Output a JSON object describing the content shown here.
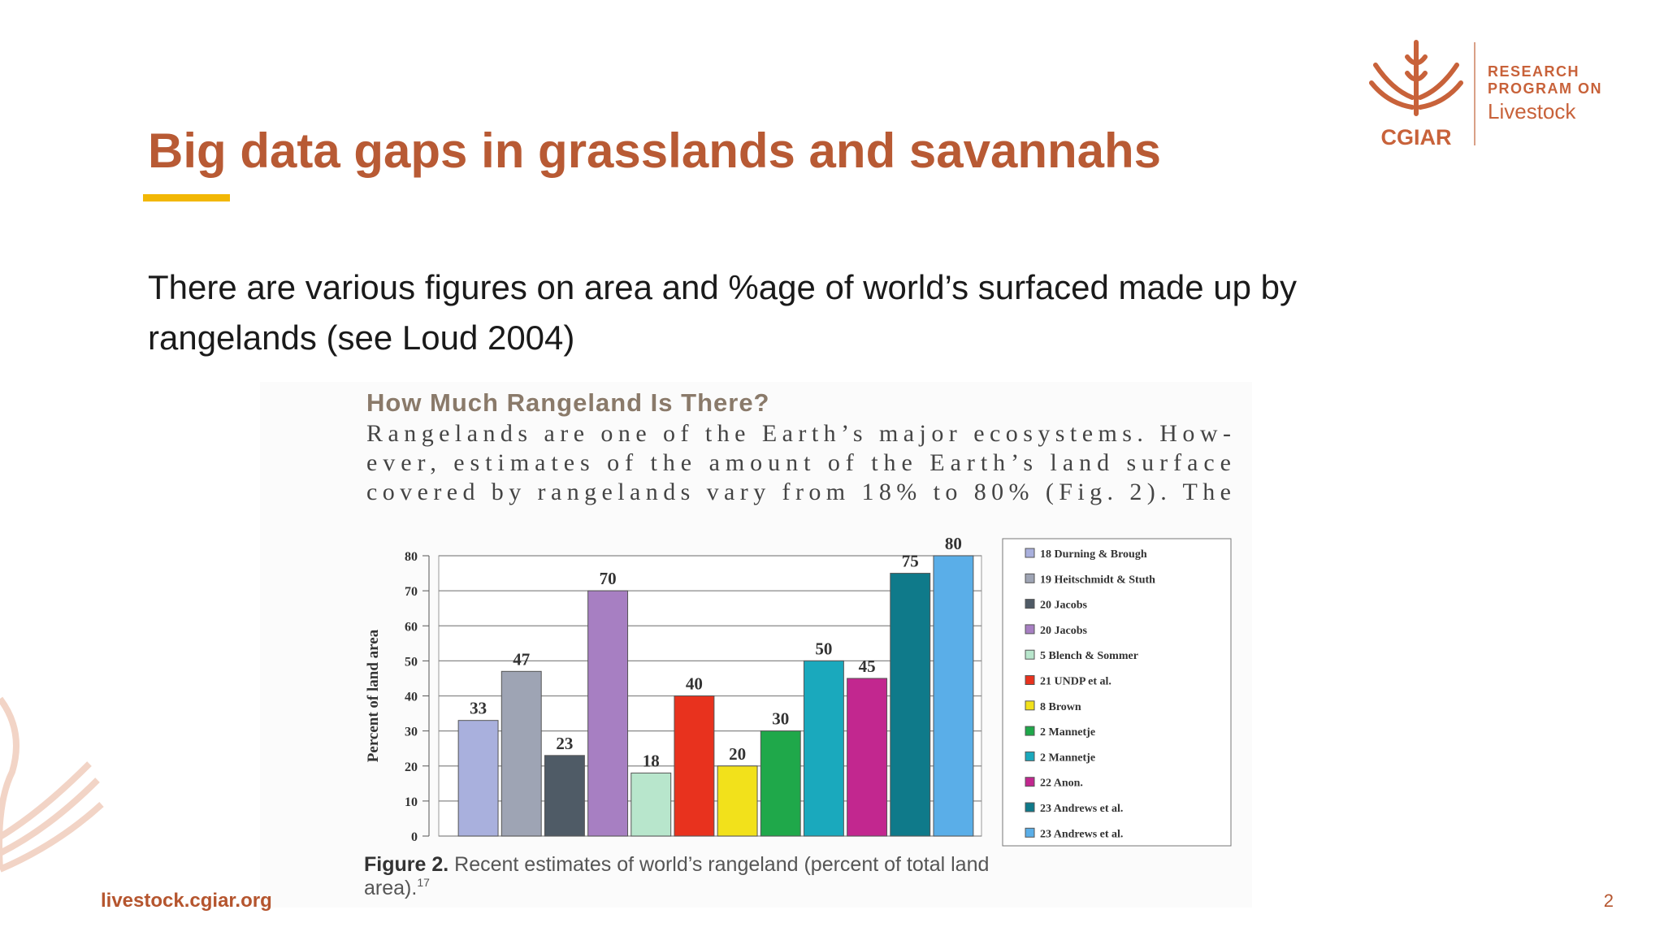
{
  "slide_title": "Big data gaps in grasslands and savannahs",
  "body_lines": [
    "There are various figures on area and %age of world’s surfaced made up by",
    "rangelands (see Loud  2004)"
  ],
  "logo": {
    "line1": "RESEARCH",
    "line2": "PROGRAM ON",
    "line3": "Livestock",
    "brand": "CGIAR"
  },
  "figure": {
    "heading": "How Much Rangeland Is There?",
    "lines": [
      "Rangelands are one of the Earth’s major ecosystems. How-",
      "ever, estimates of the amount of the Earth’s land surface",
      "covered by rangelands vary from 18% to 80% (Fig. 2). The"
    ],
    "caption_label": "Figure 2.",
    "caption_lines": [
      "Recent estimates of world’s rangeland (percent of total land",
      "area)."
    ],
    "caption_ref": "17"
  },
  "footer": {
    "url": "livestock.cgiar.org",
    "page": "2"
  },
  "chart_data": {
    "type": "bar",
    "categories": [
      null
    ],
    "y_label": "Percent of land area",
    "ylim": [
      0,
      80
    ],
    "yticks": [
      0,
      10,
      20,
      30,
      40,
      50,
      60,
      70,
      80
    ],
    "grid": true,
    "legend": "right",
    "series": [
      {
        "name": "18 Durning & Brough",
        "color": "#a9b0dd",
        "values": [
          33
        ]
      },
      {
        "name": "19 Heitschmidt & Stuth",
        "color": "#9ea4b4",
        "values": [
          47
        ]
      },
      {
        "name": "20 Jacobs",
        "color": "#4f5b66",
        "values": [
          23
        ]
      },
      {
        "name": "20 Jacobs",
        "color": "#a77fc2",
        "values": [
          70
        ]
      },
      {
        "name": "5 Blench & Sommer",
        "color": "#b8e6cc",
        "values": [
          18
        ]
      },
      {
        "name": "21 UNDP et al.",
        "color": "#e8321e",
        "values": [
          40
        ]
      },
      {
        "name": "8 Brown",
        "color": "#f2e11b",
        "values": [
          20
        ]
      },
      {
        "name": "2 Mannetje",
        "color": "#1fa84a",
        "values": [
          30
        ]
      },
      {
        "name": "2 Mannetje",
        "color": "#1aa9bd",
        "values": [
          50
        ]
      },
      {
        "name": "22 Anon.",
        "color": "#c2278f",
        "values": [
          45
        ]
      },
      {
        "name": "23 Andrews et al.",
        "color": "#0f7a8a",
        "values": [
          75
        ]
      },
      {
        "name": "23 Andrews et al.",
        "color": "#5aaee8",
        "values": [
          80
        ]
      }
    ]
  }
}
